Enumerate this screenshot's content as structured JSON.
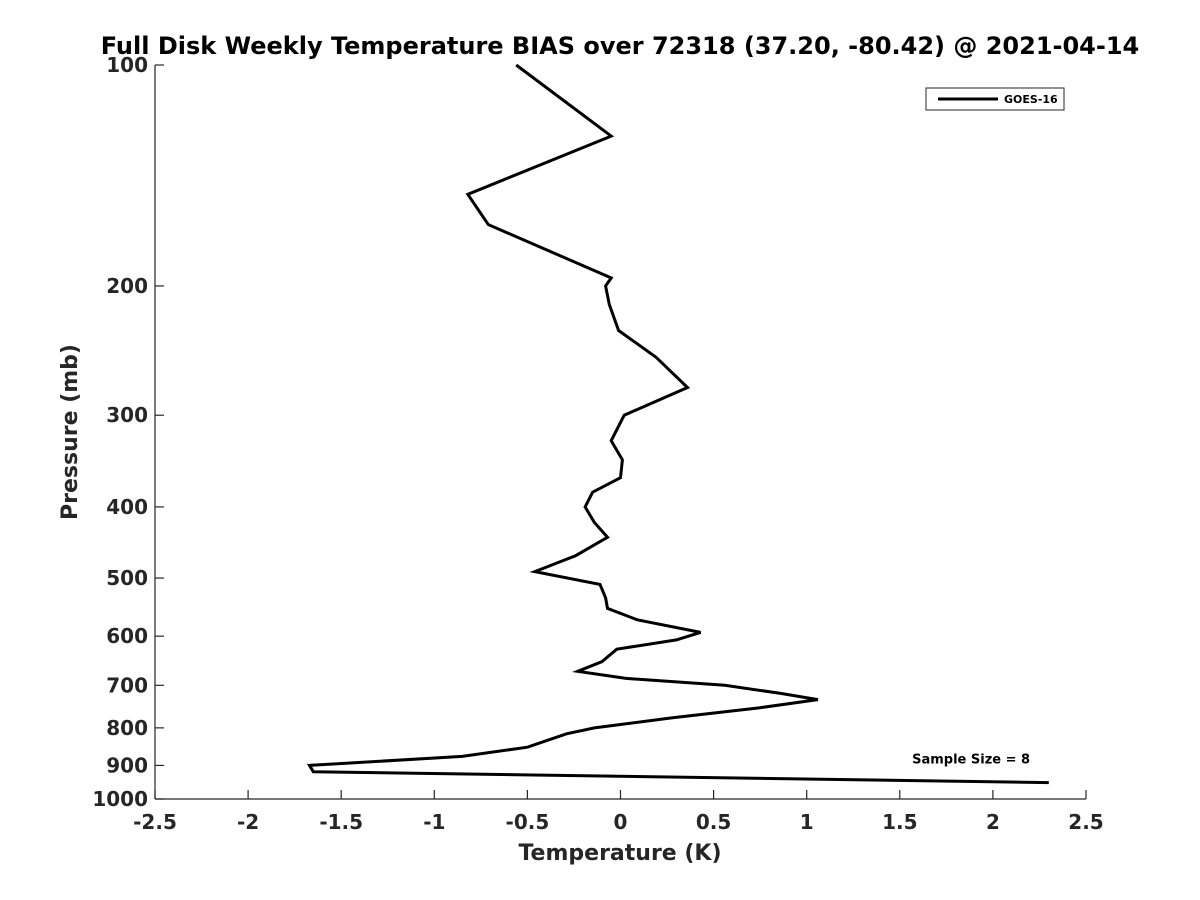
{
  "chart_data": {
    "type": "line",
    "title": "Full Disk Weekly Temperature BIAS over 72318 (37.20, -80.42) @ 2021-04-14",
    "xlabel": "Temperature (K)",
    "ylabel": "Pressure (mb)",
    "xlim": [
      -2.5,
      2.5
    ],
    "ylim": [
      100,
      1000
    ],
    "y_scale": "log",
    "y_reversed": true,
    "grid": false,
    "xticks": [
      -2.5,
      -2,
      -1.5,
      -1,
      -0.5,
      0,
      0.5,
      1,
      1.5,
      2,
      2.5
    ],
    "xtick_labels": [
      "-2.5",
      "-2",
      "-1.5",
      "-1",
      "-0.5",
      "0",
      "0.5",
      "1",
      "1.5",
      "2",
      "2.5"
    ],
    "yticks": [
      100,
      200,
      300,
      400,
      500,
      600,
      700,
      800,
      900,
      1000
    ],
    "ytick_labels": [
      "100",
      "200",
      "300",
      "400",
      "500",
      "600",
      "700",
      "800",
      "900",
      "1000"
    ],
    "legend_position": "top-right",
    "series": [
      {
        "name": "GOES-16",
        "color": "#000000",
        "points": [
          {
            "x": -0.56,
            "y": 100
          },
          {
            "x": -0.05,
            "y": 125
          },
          {
            "x": -0.82,
            "y": 150
          },
          {
            "x": -0.71,
            "y": 165
          },
          {
            "x": -0.05,
            "y": 195
          },
          {
            "x": -0.08,
            "y": 200
          },
          {
            "x": -0.06,
            "y": 212
          },
          {
            "x": -0.01,
            "y": 230
          },
          {
            "x": 0.19,
            "y": 250
          },
          {
            "x": 0.36,
            "y": 275
          },
          {
            "x": 0.02,
            "y": 300
          },
          {
            "x": -0.05,
            "y": 325
          },
          {
            "x": 0.01,
            "y": 345
          },
          {
            "x": 0.0,
            "y": 365
          },
          {
            "x": -0.15,
            "y": 382
          },
          {
            "x": -0.19,
            "y": 400
          },
          {
            "x": -0.14,
            "y": 420
          },
          {
            "x": -0.07,
            "y": 440
          },
          {
            "x": -0.24,
            "y": 466
          },
          {
            "x": -0.46,
            "y": 490
          },
          {
            "x": -0.11,
            "y": 510
          },
          {
            "x": -0.08,
            "y": 532
          },
          {
            "x": -0.07,
            "y": 550
          },
          {
            "x": 0.09,
            "y": 570
          },
          {
            "x": 0.43,
            "y": 593
          },
          {
            "x": 0.3,
            "y": 607
          },
          {
            "x": -0.02,
            "y": 625
          },
          {
            "x": -0.1,
            "y": 650
          },
          {
            "x": -0.23,
            "y": 670
          },
          {
            "x": 0.03,
            "y": 685
          },
          {
            "x": 0.56,
            "y": 700
          },
          {
            "x": 0.86,
            "y": 718
          },
          {
            "x": 1.06,
            "y": 732
          },
          {
            "x": 0.75,
            "y": 751
          },
          {
            "x": 0.28,
            "y": 775
          },
          {
            "x": -0.14,
            "y": 800
          },
          {
            "x": -0.29,
            "y": 815
          },
          {
            "x": -0.5,
            "y": 850
          },
          {
            "x": -0.85,
            "y": 875
          },
          {
            "x": -1.67,
            "y": 900
          },
          {
            "x": -1.65,
            "y": 918
          },
          {
            "x": 2.3,
            "y": 950
          }
        ]
      }
    ],
    "annotations": [
      {
        "text": "Sample Size = 8",
        "x": 2.2,
        "y": 895,
        "anchor": "end"
      }
    ]
  }
}
